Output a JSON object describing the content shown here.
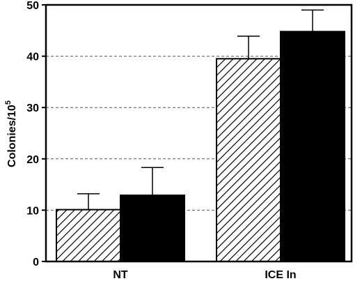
{
  "chart_data": {
    "type": "bar",
    "categories": [
      "NT",
      "ICE In"
    ],
    "series": [
      {
        "pattern": "hatched",
        "values": [
          10.1,
          39.5
        ],
        "errors": [
          3.1,
          4.4
        ]
      },
      {
        "pattern": "solid",
        "values": [
          12.9,
          44.8
        ],
        "errors": [
          5.4,
          4.2
        ]
      }
    ],
    "ylabel_main": "Colonies/10",
    "ylabel_sup": "5",
    "xlabel": "",
    "ylim": [
      0,
      50
    ],
    "yticks": [
      0,
      10,
      20,
      30,
      40,
      50
    ],
    "grid": "horizontal dashed",
    "legend": "none"
  }
}
